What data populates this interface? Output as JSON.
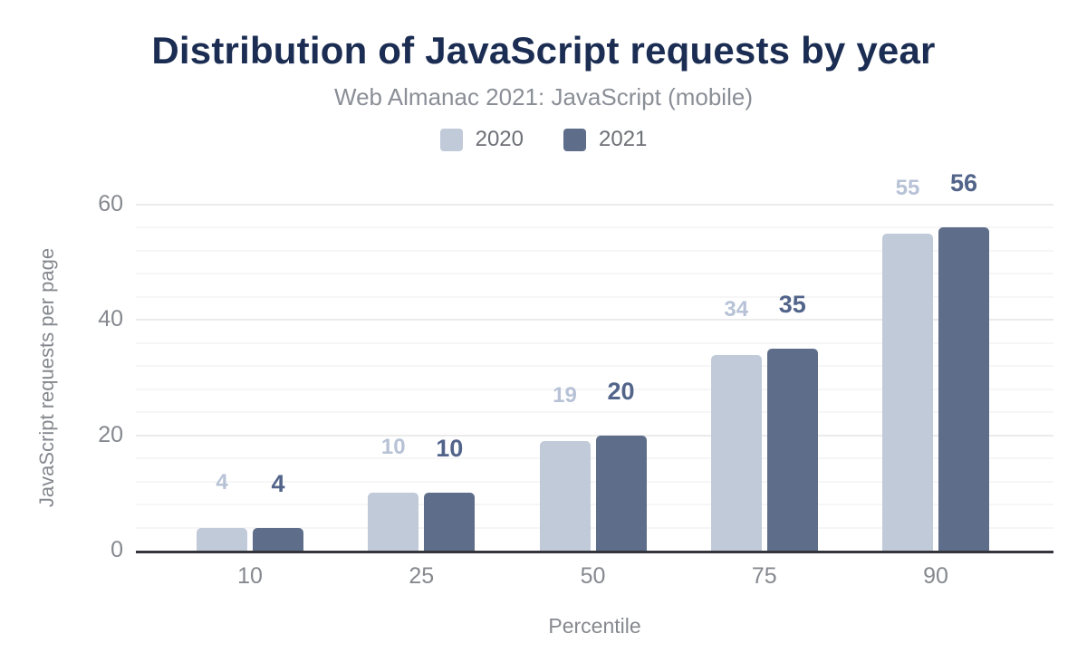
{
  "header": {
    "title": "Distribution of JavaScript requests by year",
    "subtitle": "Web Almanac 2021: JavaScript (mobile)"
  },
  "legend": {
    "items": [
      {
        "label": "2020",
        "color": "#c1cad9"
      },
      {
        "label": "2021",
        "color": "#5e6e8a"
      }
    ]
  },
  "chart_data": {
    "type": "bar",
    "title": "Distribution of JavaScript requests by year",
    "subtitle": "Web Almanac 2021: JavaScript (mobile)",
    "categories": [
      "10",
      "25",
      "50",
      "75",
      "90"
    ],
    "series": [
      {
        "name": "2020",
        "values": [
          4,
          10,
          19,
          34,
          55
        ],
        "bar_color": "#c1cad9",
        "label_color": "#b7c2d6",
        "label_font_size": 24
      },
      {
        "name": "2021",
        "values": [
          4,
          10,
          20,
          35,
          56
        ],
        "bar_color": "#5e6e8a",
        "label_color": "#52648a",
        "label_font_size": 27
      }
    ],
    "xlabel": "Percentile",
    "ylabel": "JavaScript requests per page",
    "ylim": [
      0,
      60
    ],
    "yticks": [
      0,
      20,
      40,
      60
    ],
    "grid": {
      "major_every": 20,
      "minor_every": 4,
      "grid_on": true
    },
    "legend_position": "top",
    "colors": {
      "title": "#1b2d52",
      "subtitle": "#8a8e96",
      "axis_line": "#34353b",
      "tick_label": "#85888e",
      "gridline_major": "#ebebeb",
      "gridline_minor": "#f6f6f6"
    }
  }
}
